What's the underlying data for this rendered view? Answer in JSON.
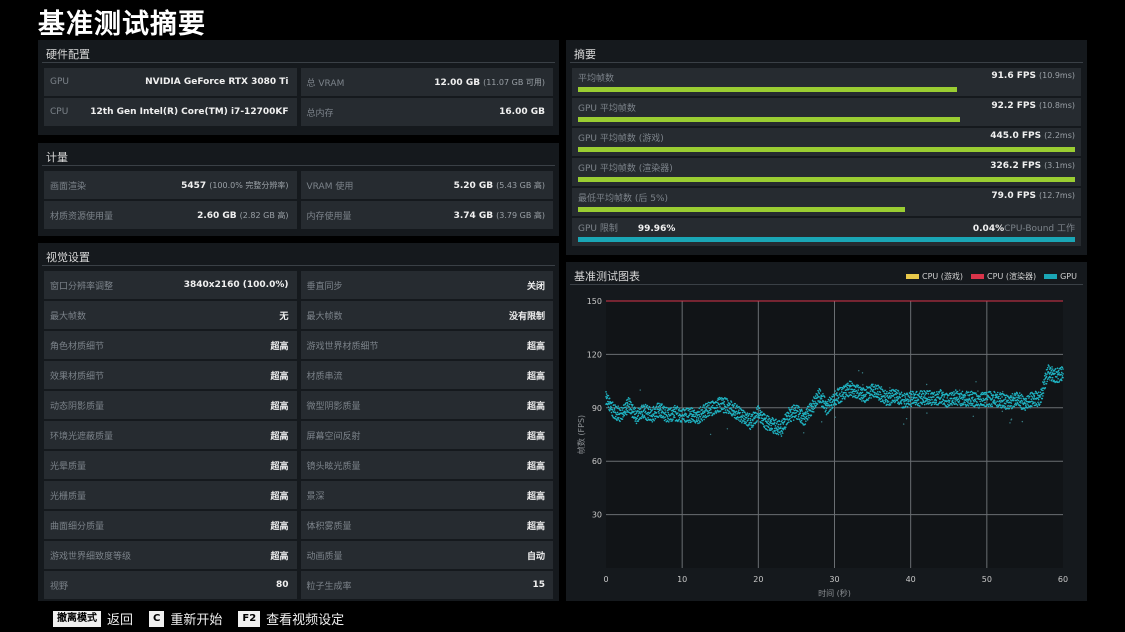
{
  "page_title": "基准测试摘要",
  "hardware": {
    "title": "硬件配置",
    "cells": [
      {
        "label": "GPU",
        "value": "NVIDIA GeForce RTX 3080 Ti",
        "sub": ""
      },
      {
        "label": "总 VRAM",
        "value": "12.00 GB",
        "sub": "(11.07 GB 可用)"
      },
      {
        "label": "CPU",
        "value": "12th Gen Intel(R) Core(TM) i7-12700KF",
        "sub": ""
      },
      {
        "label": "总内存",
        "value": "16.00 GB",
        "sub": ""
      }
    ]
  },
  "metrics": {
    "title": "计量",
    "cells": [
      {
        "label": "画面渲染",
        "value": "5457",
        "sub": "(100.0% 完整分辨率)"
      },
      {
        "label": "VRAM 使用",
        "value": "5.20 GB",
        "sub": "(5.43 GB 高)"
      },
      {
        "label": "材质资源使用量",
        "value": "2.60 GB",
        "sub": "(2.82 GB 高)"
      },
      {
        "label": "内存使用量",
        "value": "3.74 GB",
        "sub": "(3.79 GB 高)"
      }
    ]
  },
  "visual": {
    "title": "视觉设置",
    "cells": [
      {
        "label": "窗口分辨率调整",
        "value": "3840x2160 (100.0%)"
      },
      {
        "label": "垂直同步",
        "value": "关闭"
      },
      {
        "label": "最大帧数",
        "value": "无"
      },
      {
        "label": "最大帧数",
        "value": "没有限制"
      },
      {
        "label": "角色材质细节",
        "value": "超高"
      },
      {
        "label": "游戏世界材质细节",
        "value": "超高"
      },
      {
        "label": "效果材质细节",
        "value": "超高"
      },
      {
        "label": "材质串流",
        "value": "超高"
      },
      {
        "label": "动态阴影质量",
        "value": "超高"
      },
      {
        "label": "微型阴影质量",
        "value": "超高"
      },
      {
        "label": "环境光遮蔽质量",
        "value": "超高"
      },
      {
        "label": "屏幕空间反射",
        "value": "超高"
      },
      {
        "label": "光晕质量",
        "value": "超高"
      },
      {
        "label": "镜头眩光质量",
        "value": "超高"
      },
      {
        "label": "光栅质量",
        "value": "超高"
      },
      {
        "label": "景深",
        "value": "超高"
      },
      {
        "label": "曲面细分质量",
        "value": "超高"
      },
      {
        "label": "体积雾质量",
        "value": "超高"
      },
      {
        "label": "游戏世界细致度等级",
        "value": "超高"
      },
      {
        "label": "动画质量",
        "value": "自动"
      },
      {
        "label": "视野",
        "value": "80"
      },
      {
        "label": "粒子生成率",
        "value": "15"
      }
    ]
  },
  "summary": {
    "title": "摘要",
    "rows": [
      {
        "label": "平均帧数",
        "value": "91.6 FPS",
        "sub": "(10.9ms)",
        "bar_pct": 76.3
      },
      {
        "label": "GPU 平均帧数",
        "value": "92.2 FPS",
        "sub": "(10.8ms)",
        "bar_pct": 76.8
      },
      {
        "label": "GPU 平均帧数 (游戏)",
        "value": "445.0 FPS",
        "sub": "(2.2ms)",
        "bar_pct": 100
      },
      {
        "label": "GPU 平均帧数 (渲染器)",
        "value": "326.2 FPS",
        "sub": "(3.1ms)",
        "bar_pct": 100
      },
      {
        "label": "最低平均帧数 (后 5%)",
        "value": "79.0 FPS",
        "sub": "(12.7ms)",
        "bar_pct": 65.8
      }
    ],
    "gpu_bound": {
      "label": "GPU 限制",
      "gpu_pct": "99.96%",
      "cpu_pct": "0.04%",
      "cpu_label": "CPU-Bound 工作",
      "bar_pct": 99.96
    }
  },
  "chart_panel": {
    "title": "基准测试图表",
    "legend": [
      {
        "label": "CPU (游戏)",
        "color": "#e8c84a"
      },
      {
        "label": "CPU (渲染器)",
        "color": "#d9344a"
      },
      {
        "label": "GPU",
        "color": "#1aa6b5"
      }
    ]
  },
  "chart_data": {
    "type": "scatter",
    "title": "基准测试图表",
    "xlabel": "时间 (秒)",
    "ylabel": "帧数 (FPS)",
    "xlim": [
      0,
      60
    ],
    "ylim": [
      0,
      150
    ],
    "x_ticks": [
      0,
      10,
      20,
      30,
      40,
      50,
      60
    ],
    "y_ticks": [
      30,
      60,
      90,
      120,
      150
    ],
    "grid": true,
    "legend_position": "top-right",
    "series": [
      {
        "name": "CPU (游戏)",
        "color": "#e8c84a",
        "x": [],
        "y": []
      },
      {
        "name": "CPU (渲染器)",
        "color": "#d9344a",
        "x": [
          0,
          60
        ],
        "y": [
          150,
          150
        ]
      },
      {
        "name": "GPU",
        "color": "#1aa6b5",
        "x": [
          0,
          1,
          2,
          3,
          4,
          5,
          6,
          7,
          8,
          9,
          10,
          11,
          12,
          13,
          14,
          15,
          16,
          17,
          18,
          19,
          20,
          21,
          22,
          23,
          24,
          25,
          26,
          27,
          28,
          29,
          30,
          31,
          32,
          33,
          34,
          35,
          36,
          37,
          38,
          39,
          40,
          41,
          42,
          43,
          44,
          45,
          46,
          47,
          48,
          49,
          50,
          51,
          52,
          53,
          54,
          55,
          56,
          57,
          58,
          59,
          60
        ],
        "y": [
          96,
          88,
          86,
          92,
          85,
          88,
          86,
          89,
          86,
          87,
          86,
          86,
          85,
          88,
          90,
          92,
          91,
          88,
          85,
          82,
          87,
          82,
          80,
          78,
          86,
          88,
          84,
          90,
          97,
          90,
          95,
          98,
          101,
          99,
          97,
          100,
          98,
          95,
          97,
          94,
          95,
          95,
          96,
          95,
          96,
          94,
          96,
          95,
          95,
          94,
          95,
          95,
          94,
          93,
          95,
          92,
          95,
          95,
          110,
          108,
          109
        ]
      }
    ]
  },
  "footer": {
    "items": [
      {
        "key": "撤离模式",
        "action": "返回"
      },
      {
        "key": "C",
        "action": "重新开始"
      },
      {
        "key": "F2",
        "action": "查看视频设定"
      }
    ]
  }
}
